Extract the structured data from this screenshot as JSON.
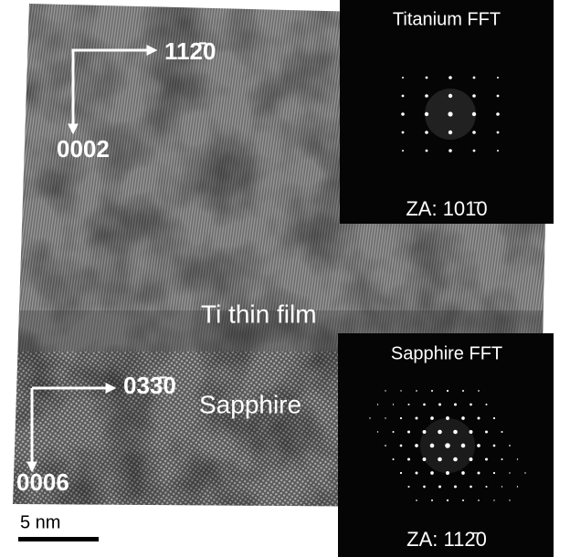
{
  "micrograph": {
    "ti_axes": {
      "horizontal": "112̄0",
      "vertical": "0002"
    },
    "sapphire_axes": {
      "horizontal": "033̄0",
      "vertical": "0006"
    },
    "ti_label": "Ti thin film",
    "sapphire_label": "Sapphire",
    "scale_bar": "5 nm"
  },
  "insets": [
    {
      "title": "Titanium FFT",
      "zone_axis": "ZA: 101̄0"
    },
    {
      "title": "Sapphire FFT",
      "zone_axis": "ZA: 112̄0"
    }
  ]
}
